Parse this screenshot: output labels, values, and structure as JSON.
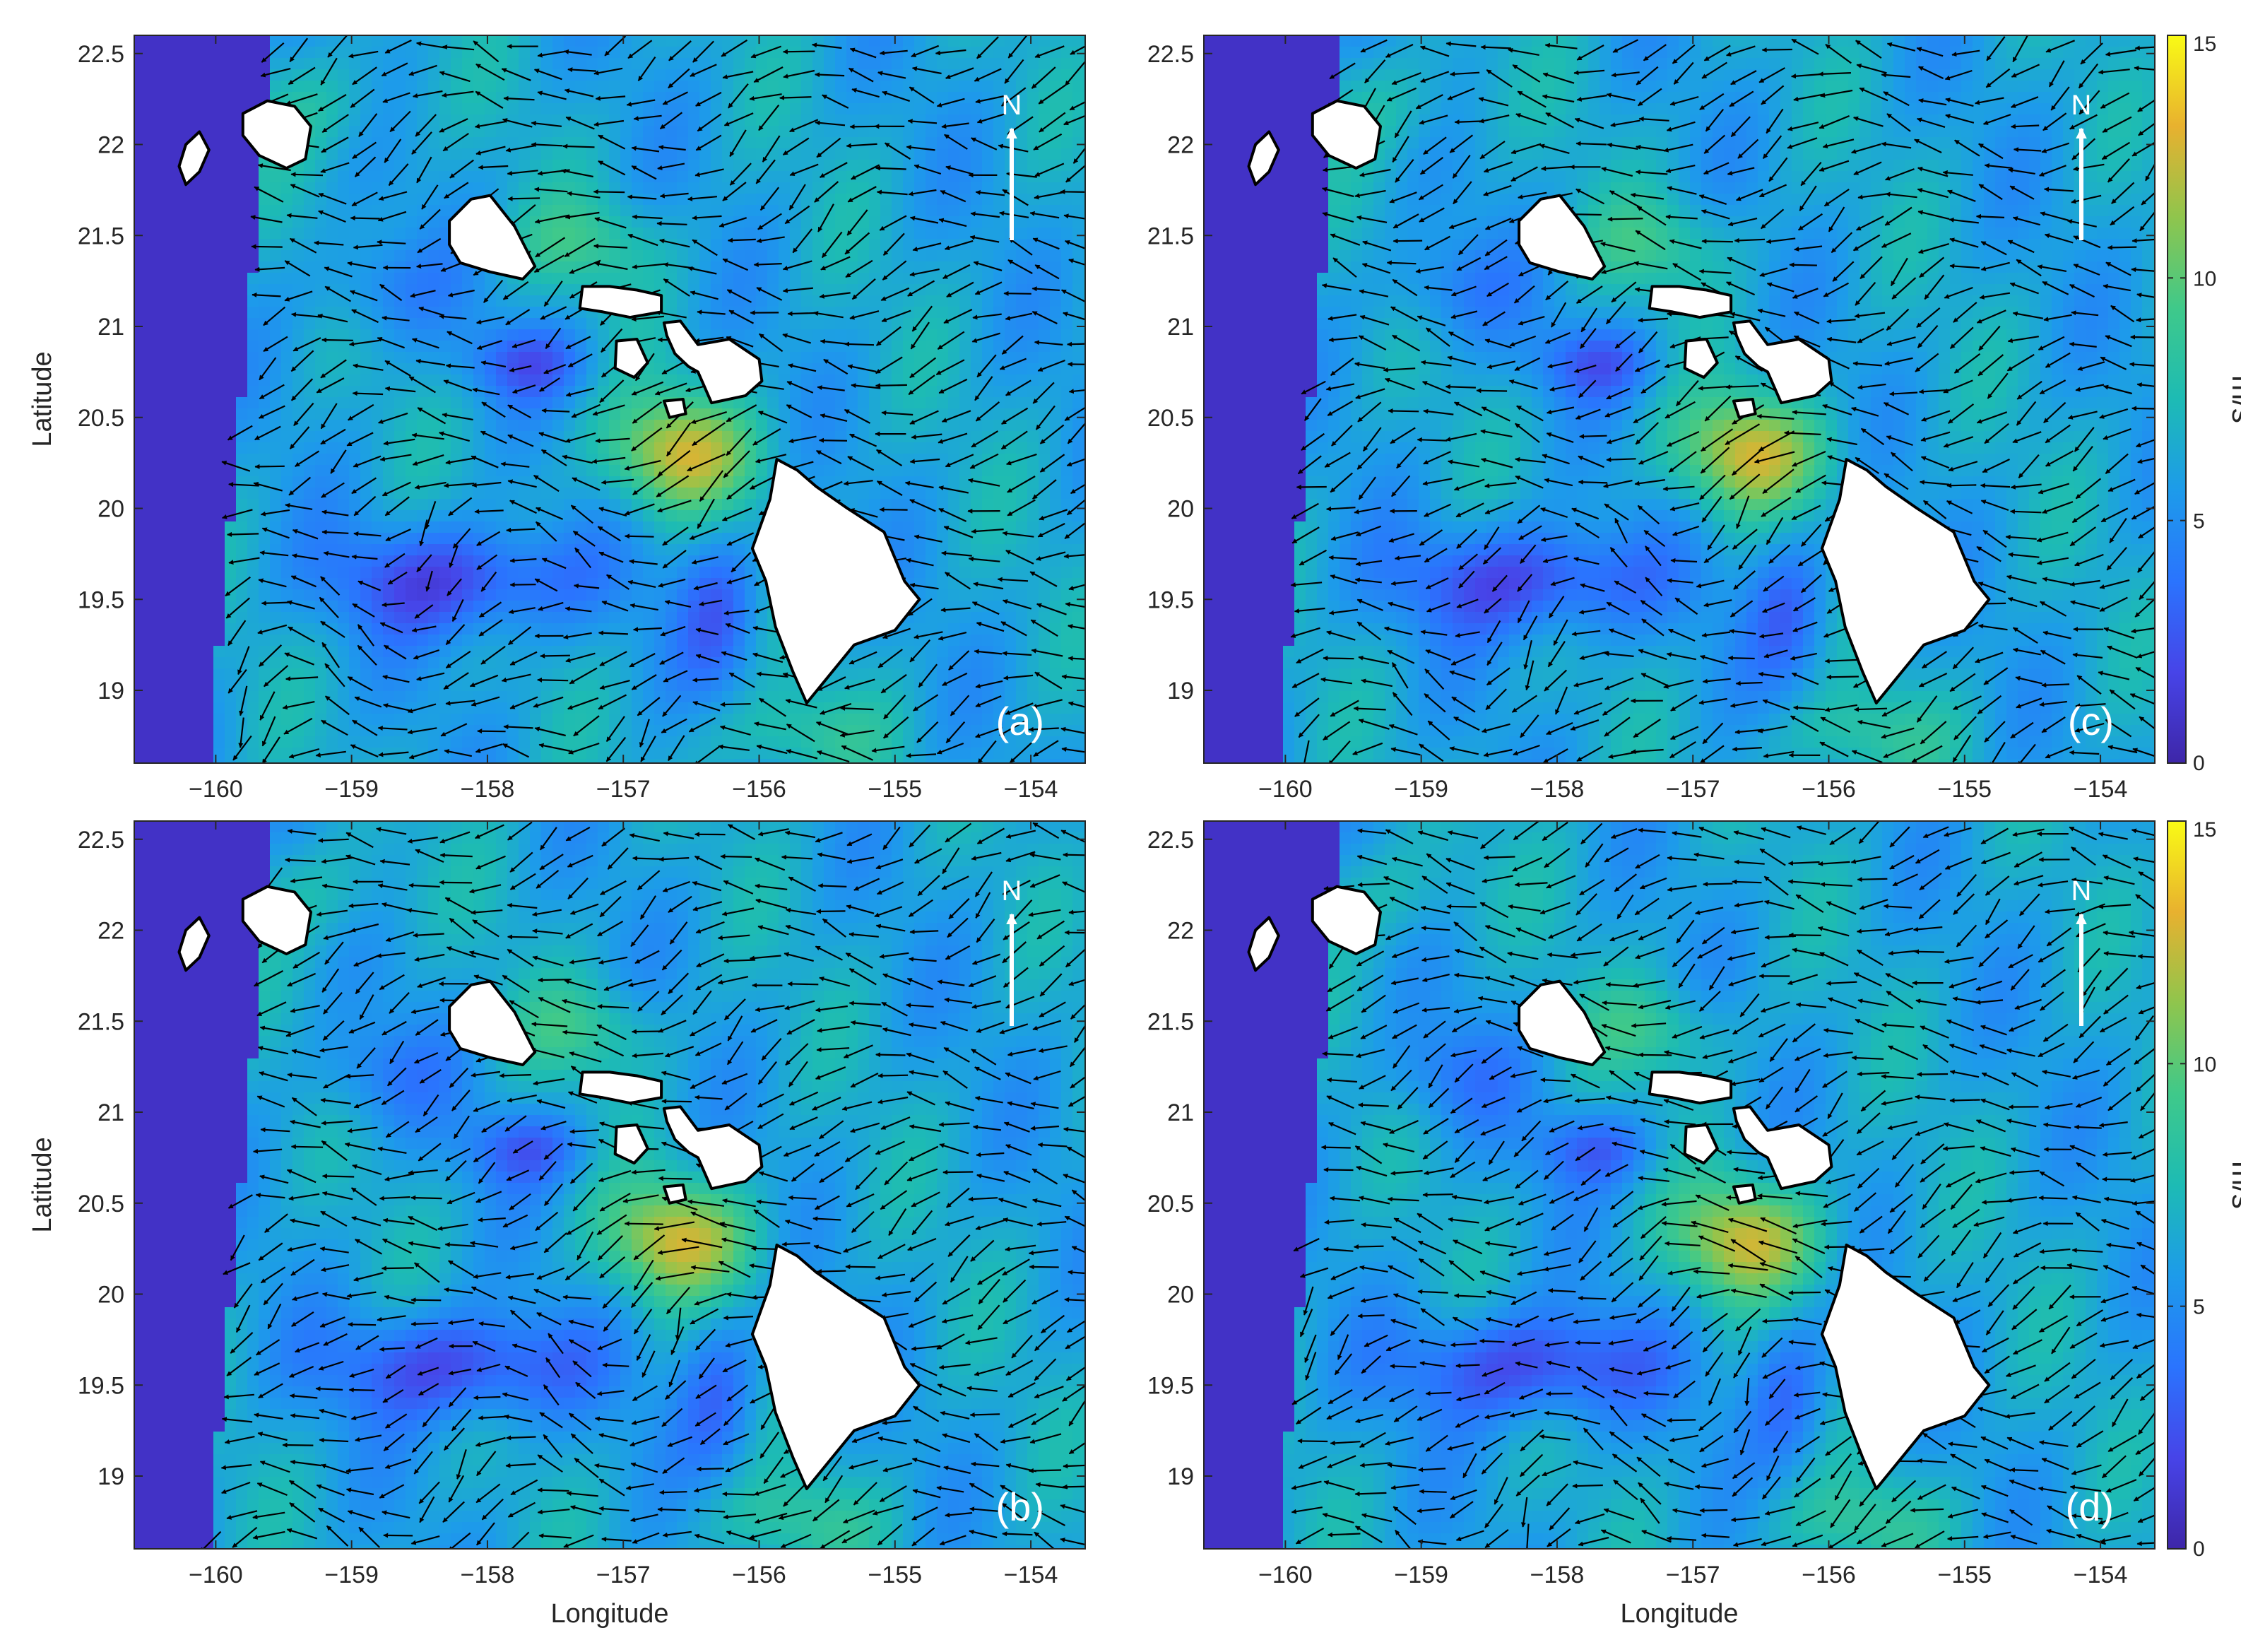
{
  "chart_data": [
    {
      "type": "heatmap",
      "panel_label": "(a)",
      "xlabel": "",
      "ylabel": "Latitude",
      "xlim": [
        -160.6,
        -153.6
      ],
      "ylim": [
        18.6,
        22.6
      ],
      "xticks": [
        -160,
        -159,
        -158,
        -157,
        -156,
        -155,
        -154
      ],
      "yticks": [
        19,
        19.5,
        20,
        20.5,
        21,
        21.5,
        22,
        22.5
      ],
      "north_label": "N",
      "colorbar": false
    },
    {
      "type": "heatmap",
      "panel_label": "(c)",
      "xlabel": "",
      "ylabel": "",
      "xlim": [
        -160.6,
        -153.6
      ],
      "ylim": [
        18.6,
        22.6
      ],
      "xticks": [
        -160,
        -159,
        -158,
        -157,
        -156,
        -155,
        -154
      ],
      "yticks": [
        19,
        19.5,
        20,
        20.5,
        21,
        21.5,
        22,
        22.5
      ],
      "north_label": "N",
      "colorbar": true
    },
    {
      "type": "heatmap",
      "panel_label": "(b)",
      "xlabel": "Longitude",
      "ylabel": "Latitude",
      "xlim": [
        -160.6,
        -153.6
      ],
      "ylim": [
        18.6,
        22.6
      ],
      "xticks": [
        -160,
        -159,
        -158,
        -157,
        -156,
        -155,
        -154
      ],
      "yticks": [
        19,
        19.5,
        20,
        20.5,
        21,
        21.5,
        22,
        22.5
      ],
      "north_label": "N",
      "colorbar": false
    },
    {
      "type": "heatmap",
      "panel_label": "(d)",
      "xlabel": "Longitude",
      "ylabel": "",
      "xlim": [
        -160.6,
        -153.6
      ],
      "ylim": [
        18.6,
        22.6
      ],
      "xticks": [
        -160,
        -159,
        -158,
        -157,
        -156,
        -155,
        -154
      ],
      "yticks": [
        19,
        19.5,
        20,
        20.5,
        21,
        21.5,
        22,
        22.5
      ],
      "north_label": "N",
      "colorbar": true
    }
  ],
  "colorbar": {
    "unit": "m/s",
    "range": [
      0,
      15
    ],
    "ticks": [
      0,
      5,
      10,
      15
    ],
    "colormap": [
      "#3e26a8",
      "#4744e8",
      "#2a74fe",
      "#1d9bea",
      "#1dbbb4",
      "#3fc98a",
      "#8fc54d",
      "#e8b12f",
      "#f9fb15"
    ]
  },
  "colors": {
    "land": "#ffffff",
    "arrows": "#000000",
    "no_data": "#4232c6"
  }
}
